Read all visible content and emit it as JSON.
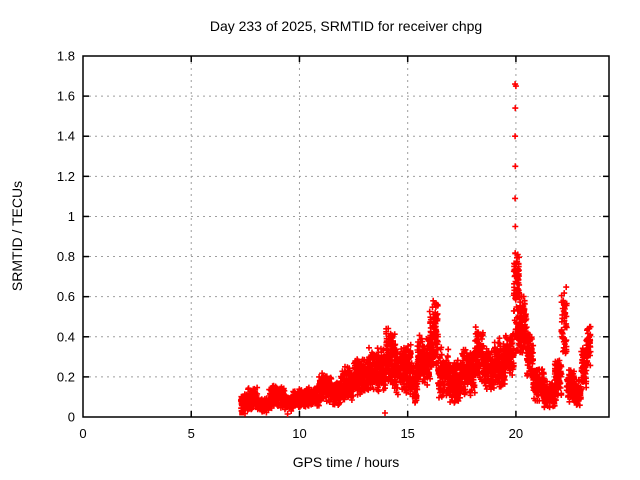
{
  "page": {
    "background": "#ffffff",
    "frame_color": "#000000",
    "grid_color": "#9e9e9e"
  },
  "chart_data": {
    "type": "scatter",
    "title": "Day 233 of 2025, SRMTID for receiver chpg",
    "xlabel": "GPS time / hours",
    "ylabel": "SRMTID / TECUs",
    "xlim": [
      0,
      24.3
    ],
    "ylim": [
      0,
      1.8
    ],
    "xticks": [
      0,
      5,
      10,
      15,
      20
    ],
    "xtick_labels": [
      "0",
      "5",
      "10",
      "15",
      "20"
    ],
    "yticks": [
      0,
      0.2,
      0.4,
      0.6,
      0.8,
      1.0,
      1.2,
      1.4,
      1.6,
      1.8
    ],
    "ytick_labels": [
      "0",
      "0.2",
      "0.4",
      "0.6",
      "0.8",
      "1",
      "1.2",
      "1.4",
      "1.6",
      "1.8"
    ],
    "grid": true,
    "grid_style": "dotted",
    "legend": "none",
    "marker": "plus",
    "marker_color": "#ff0000",
    "series": [
      {
        "name": "SRMTID receiver chpg",
        "x_start_hours": 7.3,
        "x_end_hours": 23.45,
        "start_square_point": [
          7.33,
          0.02
        ],
        "density_bands": [
          [
            7.3,
            7.55,
            0.01,
            0.12,
            70
          ],
          [
            7.55,
            8.05,
            0.03,
            0.15,
            110
          ],
          [
            8.05,
            8.6,
            0.02,
            0.1,
            120
          ],
          [
            8.6,
            9.3,
            0.04,
            0.16,
            150
          ],
          [
            9.3,
            9.7,
            0.03,
            0.12,
            85
          ],
          [
            9.7,
            10.3,
            0.04,
            0.14,
            130
          ],
          [
            10.3,
            10.9,
            0.05,
            0.16,
            130
          ],
          [
            10.9,
            11.5,
            0.07,
            0.22,
            140
          ],
          [
            11.5,
            11.9,
            0.05,
            0.18,
            90
          ],
          [
            11.9,
            12.5,
            0.07,
            0.26,
            140
          ],
          [
            12.5,
            13.2,
            0.1,
            0.3,
            170
          ],
          [
            13.2,
            14.0,
            0.12,
            0.35,
            190
          ],
          [
            14.0,
            14.4,
            0.14,
            0.45,
            100
          ],
          [
            14.4,
            15.2,
            0.1,
            0.38,
            190
          ],
          [
            15.2,
            15.45,
            0.05,
            0.3,
            60
          ],
          [
            15.45,
            16.0,
            0.15,
            0.42,
            130
          ],
          [
            16.0,
            16.4,
            0.18,
            0.6,
            110
          ],
          [
            16.4,
            16.9,
            0.08,
            0.35,
            120
          ],
          [
            16.9,
            17.5,
            0.06,
            0.3,
            140
          ],
          [
            17.5,
            18.1,
            0.1,
            0.35,
            145
          ],
          [
            18.1,
            18.5,
            0.15,
            0.47,
            100
          ],
          [
            18.5,
            19.0,
            0.12,
            0.35,
            120
          ],
          [
            19.0,
            19.5,
            0.14,
            0.4,
            120
          ],
          [
            19.5,
            19.9,
            0.18,
            0.43,
            100
          ],
          [
            19.9,
            20.15,
            0.52,
            0.85,
            80
          ],
          [
            19.95,
            20.25,
            0.3,
            0.55,
            45
          ],
          [
            20.15,
            20.5,
            0.28,
            0.62,
            85
          ],
          [
            20.5,
            20.8,
            0.18,
            0.45,
            70
          ],
          [
            20.8,
            21.3,
            0.07,
            0.25,
            115
          ],
          [
            21.3,
            21.8,
            0.04,
            0.18,
            115
          ],
          [
            21.8,
            22.1,
            0.08,
            0.3,
            75
          ],
          [
            22.1,
            22.35,
            0.25,
            0.65,
            45
          ],
          [
            22.35,
            22.7,
            0.07,
            0.25,
            85
          ],
          [
            22.7,
            23.0,
            0.05,
            0.2,
            70
          ],
          [
            23.0,
            23.25,
            0.12,
            0.35,
            55
          ],
          [
            23.25,
            23.45,
            0.25,
            0.47,
            40
          ]
        ],
        "outlier_points": [
          [
            19.96,
            1.66
          ],
          [
            20.0,
            1.65
          ],
          [
            19.97,
            1.54
          ],
          [
            19.96,
            1.4
          ],
          [
            19.97,
            1.25
          ],
          [
            19.96,
            1.09
          ],
          [
            19.97,
            0.95
          ],
          [
            9.45,
            0.015
          ],
          [
            9.62,
            0.03
          ],
          [
            13.95,
            0.02
          ]
        ]
      }
    ]
  }
}
